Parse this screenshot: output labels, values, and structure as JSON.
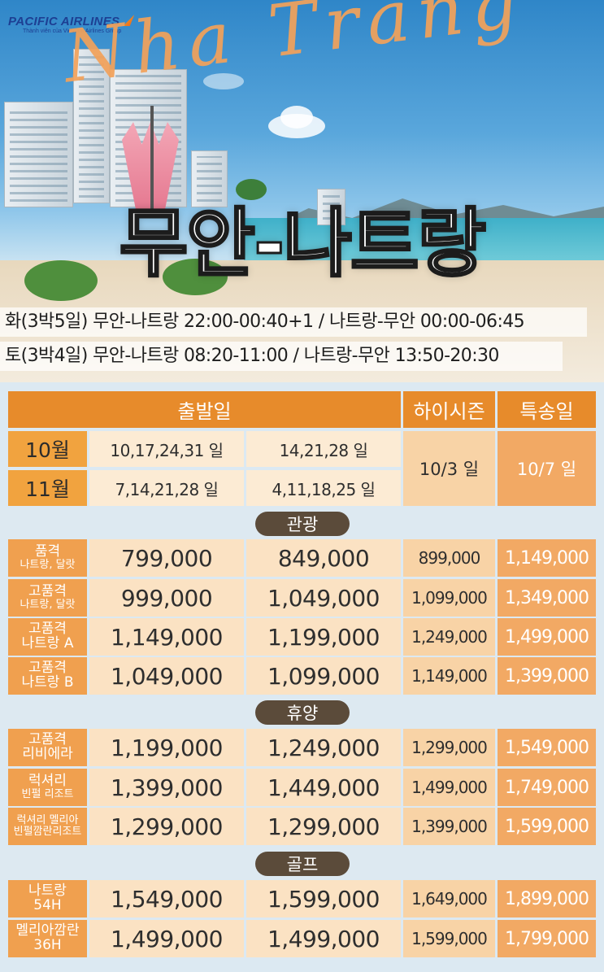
{
  "brand": {
    "name": "PACIFIC AIRLINES",
    "tagline": "Thành viên của Vietnam Airlines Group"
  },
  "hero": {
    "script_title": "Nha Trang",
    "main_title": "무안-나트랑",
    "schedules": [
      "화(3박5일) 무안-나트랑 22:00-00:40+1 / 나트랑-무안 00:00-06:45",
      "토(3박4일) 무안-나트랑 08:20-11:00 / 나트랑-무안 13:50-20:30"
    ]
  },
  "table": {
    "headers": {
      "departure": "출발일",
      "high_season": "하이시즌",
      "special": "특송일"
    },
    "months": [
      {
        "month": "10월",
        "dates_a": "10,17,24,31 일",
        "dates_b": "14,21,28 일"
      },
      {
        "month": "11월",
        "dates_a": "7,14,21,28 일",
        "dates_b": "4,11,18,25 일"
      }
    ],
    "high_season_date": "10/3 일",
    "special_date": "10/7 일",
    "sections": [
      {
        "title": "관광",
        "rows": [
          {
            "label1": "품격",
            "label2": "나트랑, 달랏",
            "p1": "799,000",
            "p2": "849,000",
            "hs": "899,000",
            "sp": "1,149,000"
          },
          {
            "label1": "고품격",
            "label2": "나트랑, 달랏",
            "p1": "999,000",
            "p2": "1,049,000",
            "hs": "1,099,000",
            "sp": "1,349,000"
          },
          {
            "label1": "고품격",
            "label2": "나트랑 A",
            "p1": "1,149,000",
            "p2": "1,199,000",
            "hs": "1,249,000",
            "sp": "1,499,000"
          },
          {
            "label1": "고품격",
            "label2": "나트랑 B",
            "p1": "1,049,000",
            "p2": "1,099,000",
            "hs": "1,149,000",
            "sp": "1,399,000"
          }
        ]
      },
      {
        "title": "휴양",
        "rows": [
          {
            "label1": "고품격",
            "label2": "리비에라",
            "p1": "1,199,000",
            "p2": "1,249,000",
            "hs": "1,299,000",
            "sp": "1,549,000"
          },
          {
            "label1": "럭셔리",
            "label2": "빈펄 리조트",
            "p1": "1,399,000",
            "p2": "1,449,000",
            "hs": "1,499,000",
            "sp": "1,749,000"
          },
          {
            "label1": "럭셔리 멜리아",
            "label2": "빈펄깜란리조트",
            "p1": "1,299,000",
            "p2": "1,299,000",
            "hs": "1,399,000",
            "sp": "1,599,000"
          }
        ]
      },
      {
        "title": "골프",
        "rows": [
          {
            "label1": "나트랑",
            "label2": "54H",
            "p1": "1,549,000",
            "p2": "1,599,000",
            "hs": "1,649,000",
            "sp": "1,899,000"
          },
          {
            "label1": "멜리아깜란",
            "label2": "36H",
            "p1": "1,499,000",
            "p2": "1,499,000",
            "hs": "1,599,000",
            "sp": "1,799,000"
          }
        ]
      }
    ]
  }
}
